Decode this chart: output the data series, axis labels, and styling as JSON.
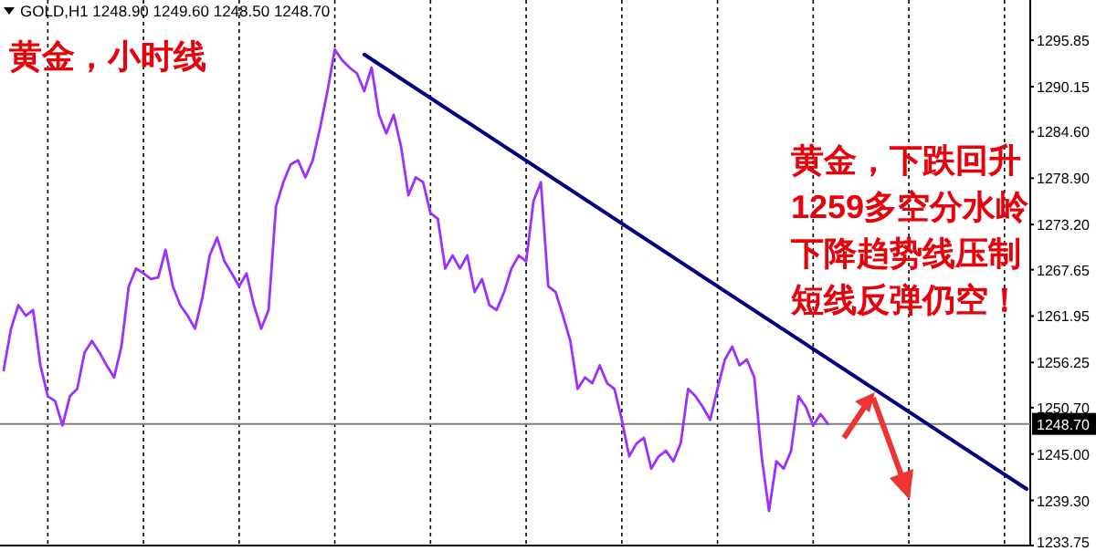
{
  "chart_data": {
    "type": "line",
    "title": "黄金，小时线",
    "annotations": [
      "GOLD,H1  1248.90 1249.60 1248.50 1248.70",
      "黄金，下跌回升",
      "1259多空分水岭",
      "下降趋势线压制",
      "短线反弹仍空！"
    ],
    "categories": [
      null,
      null,
      null,
      null,
      null,
      null,
      null,
      null,
      null,
      null,
      null,
      null,
      null,
      null,
      null,
      null,
      null,
      null,
      null,
      null,
      null,
      null,
      null,
      null,
      null,
      null,
      null,
      null,
      null,
      null,
      null,
      null,
      null,
      null,
      null,
      null,
      null,
      null,
      null,
      null,
      null,
      null,
      null,
      null,
      null,
      null,
      null,
      null,
      null,
      null,
      null,
      null,
      null,
      null,
      null,
      null,
      null,
      null,
      null,
      null,
      null,
      null,
      null,
      null,
      null,
      null,
      null,
      null,
      null,
      null,
      null,
      null,
      null,
      null,
      null,
      null,
      null,
      null,
      null,
      null,
      null,
      null,
      null,
      null,
      null,
      null,
      null,
      null,
      null,
      null,
      null,
      null,
      null,
      null,
      null,
      null,
      null,
      null,
      null,
      null,
      null,
      null,
      null,
      null,
      null,
      null,
      null,
      null,
      null,
      null,
      null,
      null,
      null,
      null,
      null,
      null,
      null,
      null,
      null,
      null,
      null,
      null,
      null,
      null,
      null,
      null,
      null,
      null,
      null,
      null,
      null,
      null,
      null,
      null,
      null,
      null,
      null,
      null,
      null,
      null
    ],
    "series": [
      {
        "color": "#9b30ff",
        "values": [
          1255.3,
          1260.4,
          1263.3,
          1262.0,
          1262.7,
          1255.9,
          1252.1,
          1251.5,
          1248.5,
          1252.1,
          1253.0,
          1257.5,
          1258.9,
          1257.5,
          1255.9,
          1254.4,
          1258.2,
          1265.6,
          1267.8,
          1267.2,
          1266.5,
          1266.7,
          1270.1,
          1265.6,
          1263.3,
          1262.0,
          1260.4,
          1264.2,
          1269.4,
          1271.6,
          1268.7,
          1267.2,
          1265.6,
          1267.2,
          1263.3,
          1260.4,
          1262.7,
          1275.4,
          1278.4,
          1280.6,
          1281.1,
          1279.0,
          1281.1,
          1285.1,
          1289.6,
          1294.7,
          1293.4,
          1292.5,
          1291.8,
          1289.6,
          1292.5,
          1286.7,
          1284.4,
          1286.7,
          1282.8,
          1276.8,
          1279.0,
          1278.4,
          1274.6,
          1273.9,
          1267.8,
          1269.4,
          1267.8,
          1269.4,
          1264.9,
          1266.5,
          1263.3,
          1262.7,
          1264.9,
          1267.8,
          1269.4,
          1268.7,
          1276.1,
          1278.4,
          1265.6,
          1264.9,
          1262.0,
          1258.9,
          1253.0,
          1254.4,
          1253.7,
          1255.9,
          1253.7,
          1253.0,
          1249.2,
          1244.7,
          1246.3,
          1247.0,
          1243.2,
          1244.7,
          1245.4,
          1244.1,
          1246.3,
          1253.0,
          1252.1,
          1250.8,
          1249.2,
          1253.0,
          1256.6,
          1258.2,
          1255.9,
          1256.6,
          1254.4,
          1244.7,
          1238.0,
          1244.1,
          1243.2,
          1245.4,
          1252.1,
          1250.8,
          1248.5,
          1249.9,
          1248.7,
          null,
          null,
          null,
          null,
          null,
          null,
          null,
          null,
          null,
          null,
          null,
          null,
          null,
          null,
          null,
          null,
          null,
          null,
          null,
          null,
          null,
          null,
          null,
          null,
          null,
          null,
          null
        ]
      },
      {
        "color": "#000080",
        "values": [
          null,
          null,
          null,
          null,
          null,
          null,
          null,
          null,
          null,
          null,
          null,
          null,
          null,
          null,
          null,
          null,
          null,
          null,
          null,
          null,
          null,
          null,
          null,
          null,
          null,
          null,
          null,
          null,
          null,
          null,
          null,
          null,
          null,
          null,
          null,
          null,
          null,
          null,
          null,
          null,
          null,
          null,
          null,
          null,
          null,
          null,
          null,
          null,
          null,
          1294.1,
          null,
          null,
          null,
          null,
          null,
          null,
          null,
          null,
          null,
          null,
          null,
          null,
          null,
          null,
          null,
          null,
          null,
          null,
          null,
          null,
          null,
          null,
          null,
          null,
          null,
          null,
          null,
          null,
          null,
          null,
          null,
          null,
          null,
          null,
          null,
          null,
          null,
          null,
          null,
          null,
          null,
          null,
          null,
          null,
          null,
          null,
          null,
          null,
          null,
          null,
          null,
          null,
          null,
          null,
          null,
          null,
          null,
          null,
          null,
          null,
          null,
          null,
          null,
          null,
          null,
          null,
          null,
          null,
          null,
          null,
          null,
          null,
          null,
          null,
          null,
          null,
          null,
          null,
          null,
          null,
          null,
          null,
          null,
          null,
          null,
          null,
          null,
          null,
          null,
          1240.7
        ]
      }
    ],
    "ylim": [
      1233.75,
      1300.8
    ],
    "yticks": [
      1233.75,
      {
        "value": 1239.3,
        "label": "1239.30"
      },
      {
        "value": 1245.0,
        "label": "1245.00"
      },
      {
        "value": 1250.7,
        "label": "1250.70"
      },
      1256.25,
      1261.95,
      1267.65,
      {
        "value": 1273.2,
        "label": "1273.20"
      },
      {
        "value": 1278.9,
        "label": "1278.90"
      },
      {
        "value": 1284.6,
        "label": "1284.60"
      },
      1290.15,
      1295.85
    ],
    "ref_lines": [
      {
        "axis": "y",
        "value": 1248.7,
        "label": "1248.70",
        "color": "#808080"
      }
    ],
    "grid": "x"
  }
}
